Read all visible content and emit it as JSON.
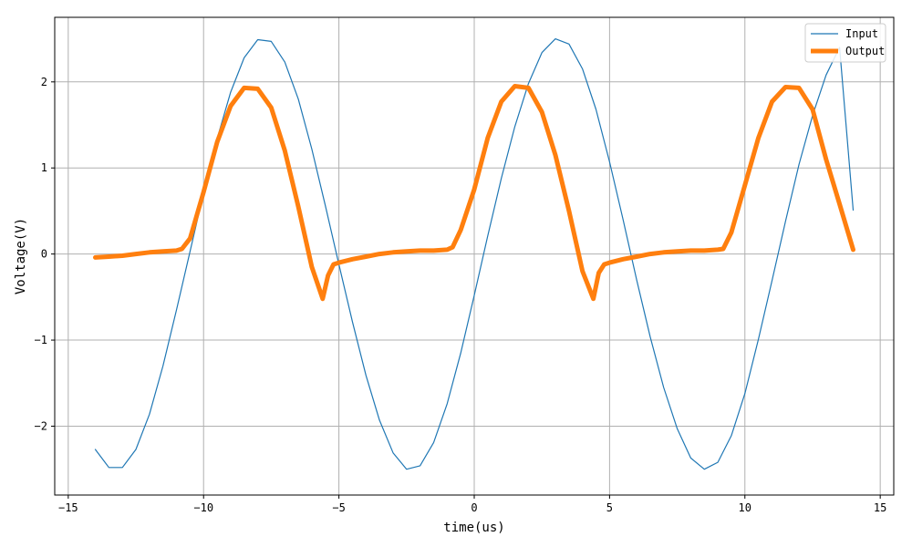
{
  "chart_data": {
    "type": "line",
    "title": "",
    "xlabel": "time(us)",
    "ylabel": "Voltage(V)",
    "xlim": [
      -15.5,
      15.5
    ],
    "ylim": [
      -2.8,
      2.75
    ],
    "xticks": [
      -15,
      -10,
      -5,
      0,
      5,
      10,
      15
    ],
    "xtick_labels": [
      "−15",
      "−10",
      "−5",
      "0",
      "5",
      "10",
      "15"
    ],
    "yticks": [
      -2,
      -1,
      0,
      1,
      2
    ],
    "ytick_labels": [
      "−2",
      "−1",
      "0",
      "1",
      "2"
    ],
    "grid": true,
    "legend_position": "top-right",
    "series": [
      {
        "name": "Input",
        "color": "#1f77b4",
        "x": [
          -14.0,
          -13.5,
          -13.0,
          -12.5,
          -12.0,
          -11.5,
          -11.0,
          -10.5,
          -10.0,
          -9.5,
          -9.0,
          -8.5,
          -8.0,
          -7.5,
          -7.0,
          -6.5,
          -6.0,
          -5.5,
          -5.0,
          -4.5,
          -4.0,
          -3.5,
          -3.0,
          -2.5,
          -2.0,
          -1.5,
          -1.0,
          -0.5,
          0.0,
          0.5,
          1.0,
          1.5,
          2.0,
          2.5,
          3.0,
          3.5,
          4.0,
          4.5,
          5.0,
          5.5,
          6.0,
          6.5,
          7.0,
          7.5,
          8.0,
          8.5,
          9.0,
          9.5,
          10.0,
          10.5,
          11.0,
          11.5,
          12.0,
          12.5,
          13.0,
          13.5,
          14.0
        ],
        "y": [
          -2.27,
          -2.48,
          -2.48,
          -2.27,
          -1.86,
          -1.3,
          -0.65,
          0.03,
          0.71,
          1.34,
          1.88,
          2.28,
          2.49,
          2.47,
          2.23,
          1.8,
          1.22,
          0.56,
          -0.12,
          -0.79,
          -1.41,
          -1.93,
          -2.31,
          -2.5,
          -2.46,
          -2.19,
          -1.74,
          -1.15,
          -0.48,
          0.21,
          0.88,
          1.48,
          1.98,
          2.34,
          2.5,
          2.44,
          2.15,
          1.68,
          1.07,
          0.4,
          -0.3,
          -0.96,
          -1.55,
          -2.03,
          -2.37,
          -2.5,
          -2.42,
          -2.11,
          -1.62,
          -0.99,
          -0.31,
          0.38,
          1.04,
          1.61,
          2.08,
          2.4,
          0.51
        ]
      },
      {
        "name": "Output",
        "color": "#ff7f0e",
        "x": [
          -14.0,
          -13.5,
          -13.0,
          -12.5,
          -12.0,
          -11.5,
          -11.0,
          -10.8,
          -10.5,
          -10.0,
          -9.5,
          -9.0,
          -8.5,
          -8.0,
          -7.5,
          -7.0,
          -6.5,
          -6.0,
          -5.6,
          -5.4,
          -5.2,
          -5.0,
          -4.5,
          -4.0,
          -3.5,
          -3.0,
          -2.5,
          -2.0,
          -1.5,
          -1.0,
          -0.8,
          -0.5,
          0.0,
          0.5,
          1.0,
          1.5,
          2.0,
          2.5,
          3.0,
          3.5,
          4.0,
          4.4,
          4.6,
          4.8,
          5.0,
          5.5,
          6.0,
          6.5,
          7.0,
          7.5,
          8.0,
          8.5,
          9.0,
          9.2,
          9.5,
          10.0,
          10.5,
          11.0,
          11.5,
          12.0,
          12.5,
          13.0,
          13.5,
          14.0
        ],
        "y": [
          -0.04,
          -0.03,
          -0.02,
          0.0,
          0.02,
          0.03,
          0.04,
          0.06,
          0.18,
          0.72,
          1.3,
          1.72,
          1.93,
          1.92,
          1.7,
          1.2,
          0.55,
          -0.15,
          -0.52,
          -0.25,
          -0.12,
          -0.1,
          -0.06,
          -0.03,
          0.0,
          0.02,
          0.03,
          0.04,
          0.04,
          0.05,
          0.08,
          0.28,
          0.75,
          1.35,
          1.77,
          1.95,
          1.93,
          1.65,
          1.15,
          0.5,
          -0.2,
          -0.52,
          -0.22,
          -0.12,
          -0.1,
          -0.06,
          -0.03,
          0.0,
          0.02,
          0.03,
          0.04,
          0.04,
          0.05,
          0.06,
          0.25,
          0.8,
          1.35,
          1.77,
          1.94,
          1.93,
          1.68,
          1.1,
          0.58,
          0.05
        ]
      }
    ]
  }
}
